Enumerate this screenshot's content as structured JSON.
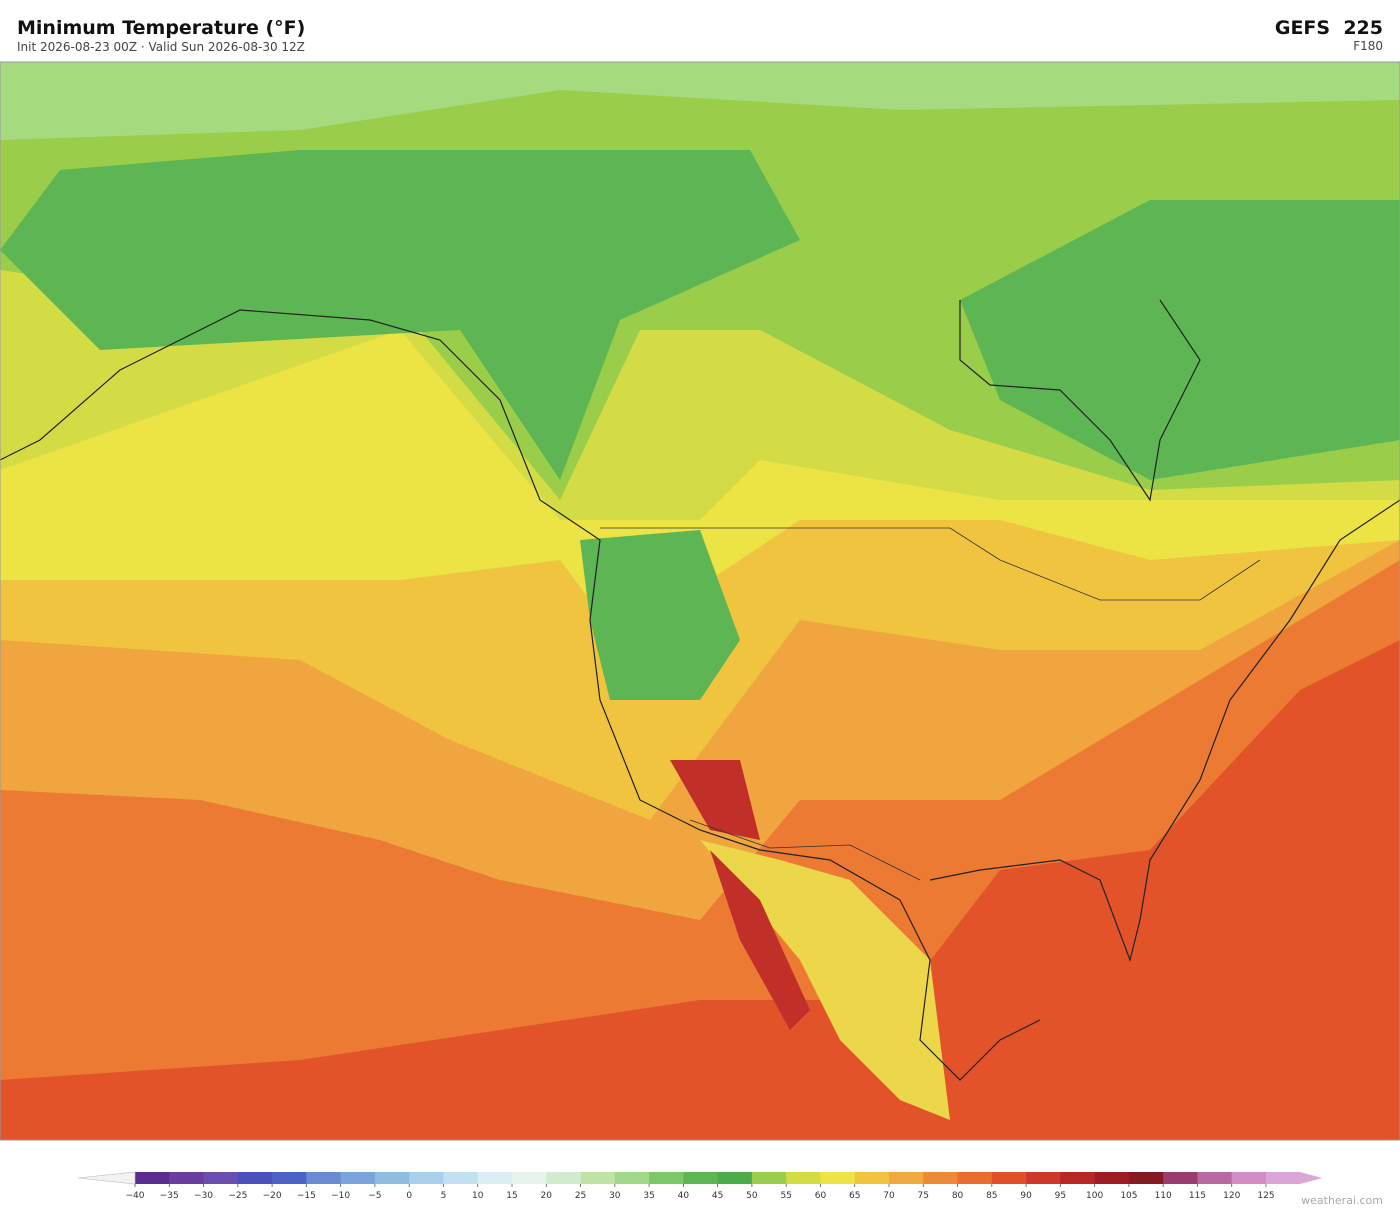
{
  "header": {
    "title": "Minimum Temperature  (°F)",
    "subtitle": "Init 2026-08-23 00Z  ·  Valid Sun 2026-08-30 12Z",
    "model": "GEFS  225",
    "forecast_hour": "F180"
  },
  "colorbar": {
    "ticks": [
      {
        "value": -40,
        "label": "−40"
      },
      {
        "value": -35,
        "label": "−35"
      },
      {
        "value": -30,
        "label": "−30"
      },
      {
        "value": -25,
        "label": "−25"
      },
      {
        "value": -20,
        "label": "−20"
      },
      {
        "value": -15,
        "label": "−15"
      },
      {
        "value": -10,
        "label": "−10"
      },
      {
        "value": -5,
        "label": "−5"
      },
      0,
      5,
      10,
      15,
      20,
      25,
      30,
      35,
      40,
      45,
      50,
      55,
      60,
      65,
      70,
      75,
      80,
      85,
      90,
      95,
      100,
      105,
      110,
      115,
      120,
      125
    ],
    "colors": [
      "#5a2d91",
      "#6a3ea0",
      "#6b4fb0",
      "#4b4fc0",
      "#4c62c8",
      "#6a8ad4",
      "#7ba3dc",
      "#8fbce3",
      "#a8d0ec",
      "#c3e1f0",
      "#dcedf3",
      "#e6f4ec",
      "#d2ecd2",
      "#bfe3a6",
      "#a1d98a",
      "#7cc865",
      "#5db653",
      "#4aad4a",
      "#9acd4a",
      "#d4dc45",
      "#ece345",
      "#f1c440",
      "#f0aa40",
      "#ee8a35",
      "#ea6d2e",
      "#e2502a",
      "#cf3828",
      "#b92626",
      "#9e1c24",
      "#861a22",
      "#9b3c6e",
      "#b86aa0",
      "#d58cc4"
    ],
    "extend_colors": [
      "#f2f2f4",
      "#dba6d6"
    ]
  },
  "footer": {
    "credit": "weatherai.com"
  }
}
